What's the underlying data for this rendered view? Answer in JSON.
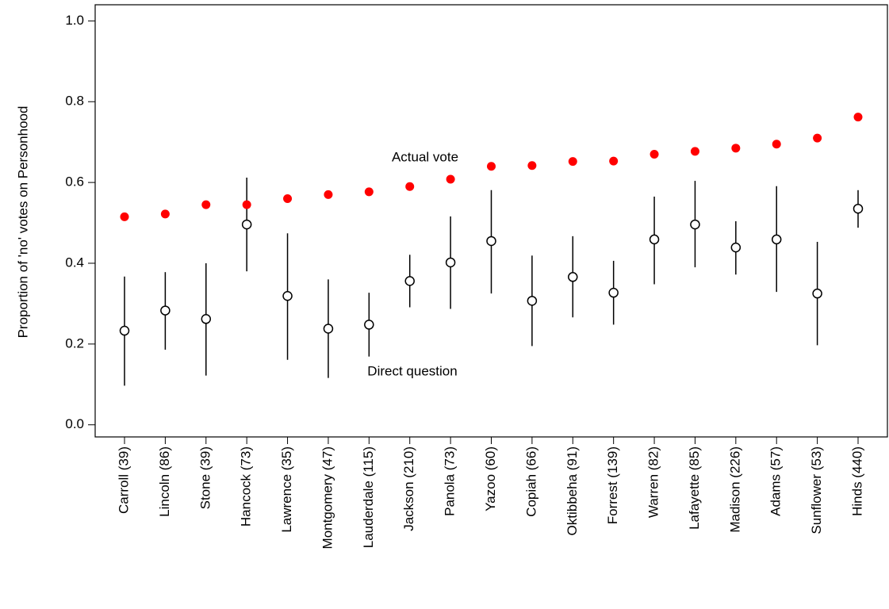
{
  "chart_data": {
    "type": "dot_interval",
    "y_label": "Proportion of 'no' votes on Personhood",
    "categories": [
      "Carroll (39)",
      "Lincoln (86)",
      "Stone (39)",
      "Hancock (73)",
      "Lawrence (35)",
      "Montgomery (47)",
      "Lauderdale (115)",
      "Jackson (210)",
      "Panola (73)",
      "Yazoo (60)",
      "Copiah (66)",
      "Oktibbeha (91)",
      "Forrest (139)",
      "Warren (82)",
      "Lafayette (85)",
      "Madison (226)",
      "Adams (57)",
      "Sunflower (53)",
      "Hinds (440)"
    ],
    "actual": {
      "color": "#ff0000",
      "values": [
        0.515,
        0.522,
        0.545,
        0.545,
        0.56,
        0.57,
        0.577,
        0.59,
        0.608,
        0.64,
        0.642,
        0.652,
        0.653,
        0.67,
        0.677,
        0.685,
        0.695,
        0.71,
        0.762
      ]
    },
    "direct": {
      "color": "#000000",
      "values": [
        0.233,
        0.283,
        0.262,
        0.496,
        0.319,
        0.238,
        0.248,
        0.356,
        0.402,
        0.455,
        0.307,
        0.366,
        0.327,
        0.459,
        0.496,
        0.439,
        0.459,
        0.325,
        0.535
      ],
      "lower": [
        0.097,
        0.186,
        0.122,
        0.38,
        0.161,
        0.116,
        0.169,
        0.291,
        0.287,
        0.325,
        0.195,
        0.266,
        0.248,
        0.348,
        0.39,
        0.372,
        0.329,
        0.197,
        0.488
      ],
      "upper": [
        0.367,
        0.378,
        0.4,
        0.612,
        0.474,
        0.36,
        0.327,
        0.421,
        0.516,
        0.581,
        0.419,
        0.467,
        0.406,
        0.565,
        0.604,
        0.504,
        0.591,
        0.453,
        0.581
      ]
    },
    "annotations": [
      "Actual vote",
      "Direct question"
    ],
    "ylim": [
      -0.03,
      1.04
    ],
    "yticks": [
      {
        "value": 0,
        "label": "0.0"
      },
      0.2,
      0.4,
      0.6,
      0.8,
      {
        "value": 1,
        "label": "1.0"
      }
    ]
  }
}
